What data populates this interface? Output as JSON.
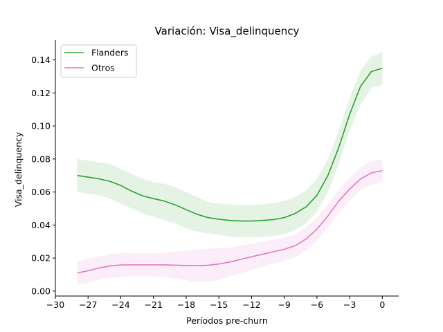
{
  "chart_data": {
    "type": "line",
    "title": "Variación: Visa_delinquency",
    "xlabel": "Períodos pre-churn",
    "ylabel": "Visa_delinquency",
    "xlim": [
      -30,
      1.5
    ],
    "ylim": [
      -0.003,
      0.152
    ],
    "x_ticks": [
      -30,
      -27,
      -24,
      -21,
      -18,
      -15,
      -12,
      -9,
      -6,
      -3,
      0
    ],
    "x_tick_labels": [
      "−30",
      "−27",
      "−24",
      "−21",
      "−18",
      "−15",
      "−12",
      "−9",
      "−6",
      "−3",
      "0"
    ],
    "y_ticks": [
      0.0,
      0.02,
      0.04,
      0.06,
      0.08,
      0.1,
      0.12,
      0.14
    ],
    "y_tick_labels": [
      "0.00",
      "0.02",
      "0.04",
      "0.06",
      "0.08",
      "0.10",
      "0.12",
      "0.14"
    ],
    "grid": false,
    "legend_position": "top-left",
    "x": [
      -28,
      -27,
      -26,
      -25,
      -24,
      -23,
      -22,
      -21,
      -20,
      -19,
      -18,
      -17,
      -16,
      -15,
      -14,
      -13,
      -12,
      -11,
      -10,
      -9,
      -8,
      -7,
      -6,
      -5,
      -4,
      -3,
      -2,
      -1,
      0
    ],
    "series": [
      {
        "name": "Flanders",
        "color": "#2ca02c",
        "values": [
          0.07,
          0.069,
          0.068,
          0.0665,
          0.064,
          0.0605,
          0.0577,
          0.056,
          0.0545,
          0.0522,
          0.0493,
          0.0465,
          0.0445,
          0.0435,
          0.0428,
          0.0424,
          0.0424,
          0.0428,
          0.0433,
          0.0445,
          0.047,
          0.051,
          0.058,
          0.07,
          0.087,
          0.107,
          0.124,
          0.133,
          0.135
        ],
        "lower": [
          0.06,
          0.059,
          0.058,
          0.056,
          0.053,
          0.05,
          0.047,
          0.045,
          0.043,
          0.041,
          0.038,
          0.036,
          0.035,
          0.034,
          0.033,
          0.0325,
          0.0325,
          0.0328,
          0.0333,
          0.0345,
          0.037,
          0.041,
          0.048,
          0.06,
          0.077,
          0.097,
          0.113,
          0.123,
          0.125
        ],
        "upper": [
          0.08,
          0.079,
          0.078,
          0.077,
          0.074,
          0.071,
          0.068,
          0.066,
          0.065,
          0.063,
          0.06,
          0.057,
          0.054,
          0.053,
          0.0525,
          0.0522,
          0.0522,
          0.0525,
          0.0533,
          0.0545,
          0.057,
          0.061,
          0.068,
          0.08,
          0.097,
          0.117,
          0.134,
          0.142,
          0.145
        ]
      },
      {
        "name": "Otros",
        "color": "#e377c2",
        "values": [
          0.011,
          0.0123,
          0.014,
          0.0152,
          0.0158,
          0.0159,
          0.0159,
          0.0159,
          0.0159,
          0.0157,
          0.0155,
          0.0154,
          0.0156,
          0.0164,
          0.0176,
          0.0192,
          0.0208,
          0.0223,
          0.0238,
          0.0253,
          0.0275,
          0.0315,
          0.0375,
          0.0455,
          0.0545,
          0.0618,
          0.0679,
          0.0716,
          0.073
        ],
        "lower": [
          0.004,
          0.005,
          0.007,
          0.008,
          0.0085,
          0.009,
          0.009,
          0.009,
          0.0085,
          0.0075,
          0.0065,
          0.0055,
          0.0058,
          0.0068,
          0.0088,
          0.0108,
          0.0128,
          0.0148,
          0.0165,
          0.0183,
          0.0205,
          0.0245,
          0.0305,
          0.0385,
          0.0475,
          0.0548,
          0.0609,
          0.0646,
          0.066
        ],
        "upper": [
          0.018,
          0.0196,
          0.021,
          0.0224,
          0.0231,
          0.0228,
          0.0228,
          0.0228,
          0.0233,
          0.0239,
          0.0245,
          0.0253,
          0.0254,
          0.026,
          0.0264,
          0.0276,
          0.0288,
          0.0298,
          0.0311,
          0.0323,
          0.0345,
          0.0385,
          0.0445,
          0.0525,
          0.0615,
          0.0688,
          0.0749,
          0.0786,
          0.08
        ]
      }
    ]
  }
}
